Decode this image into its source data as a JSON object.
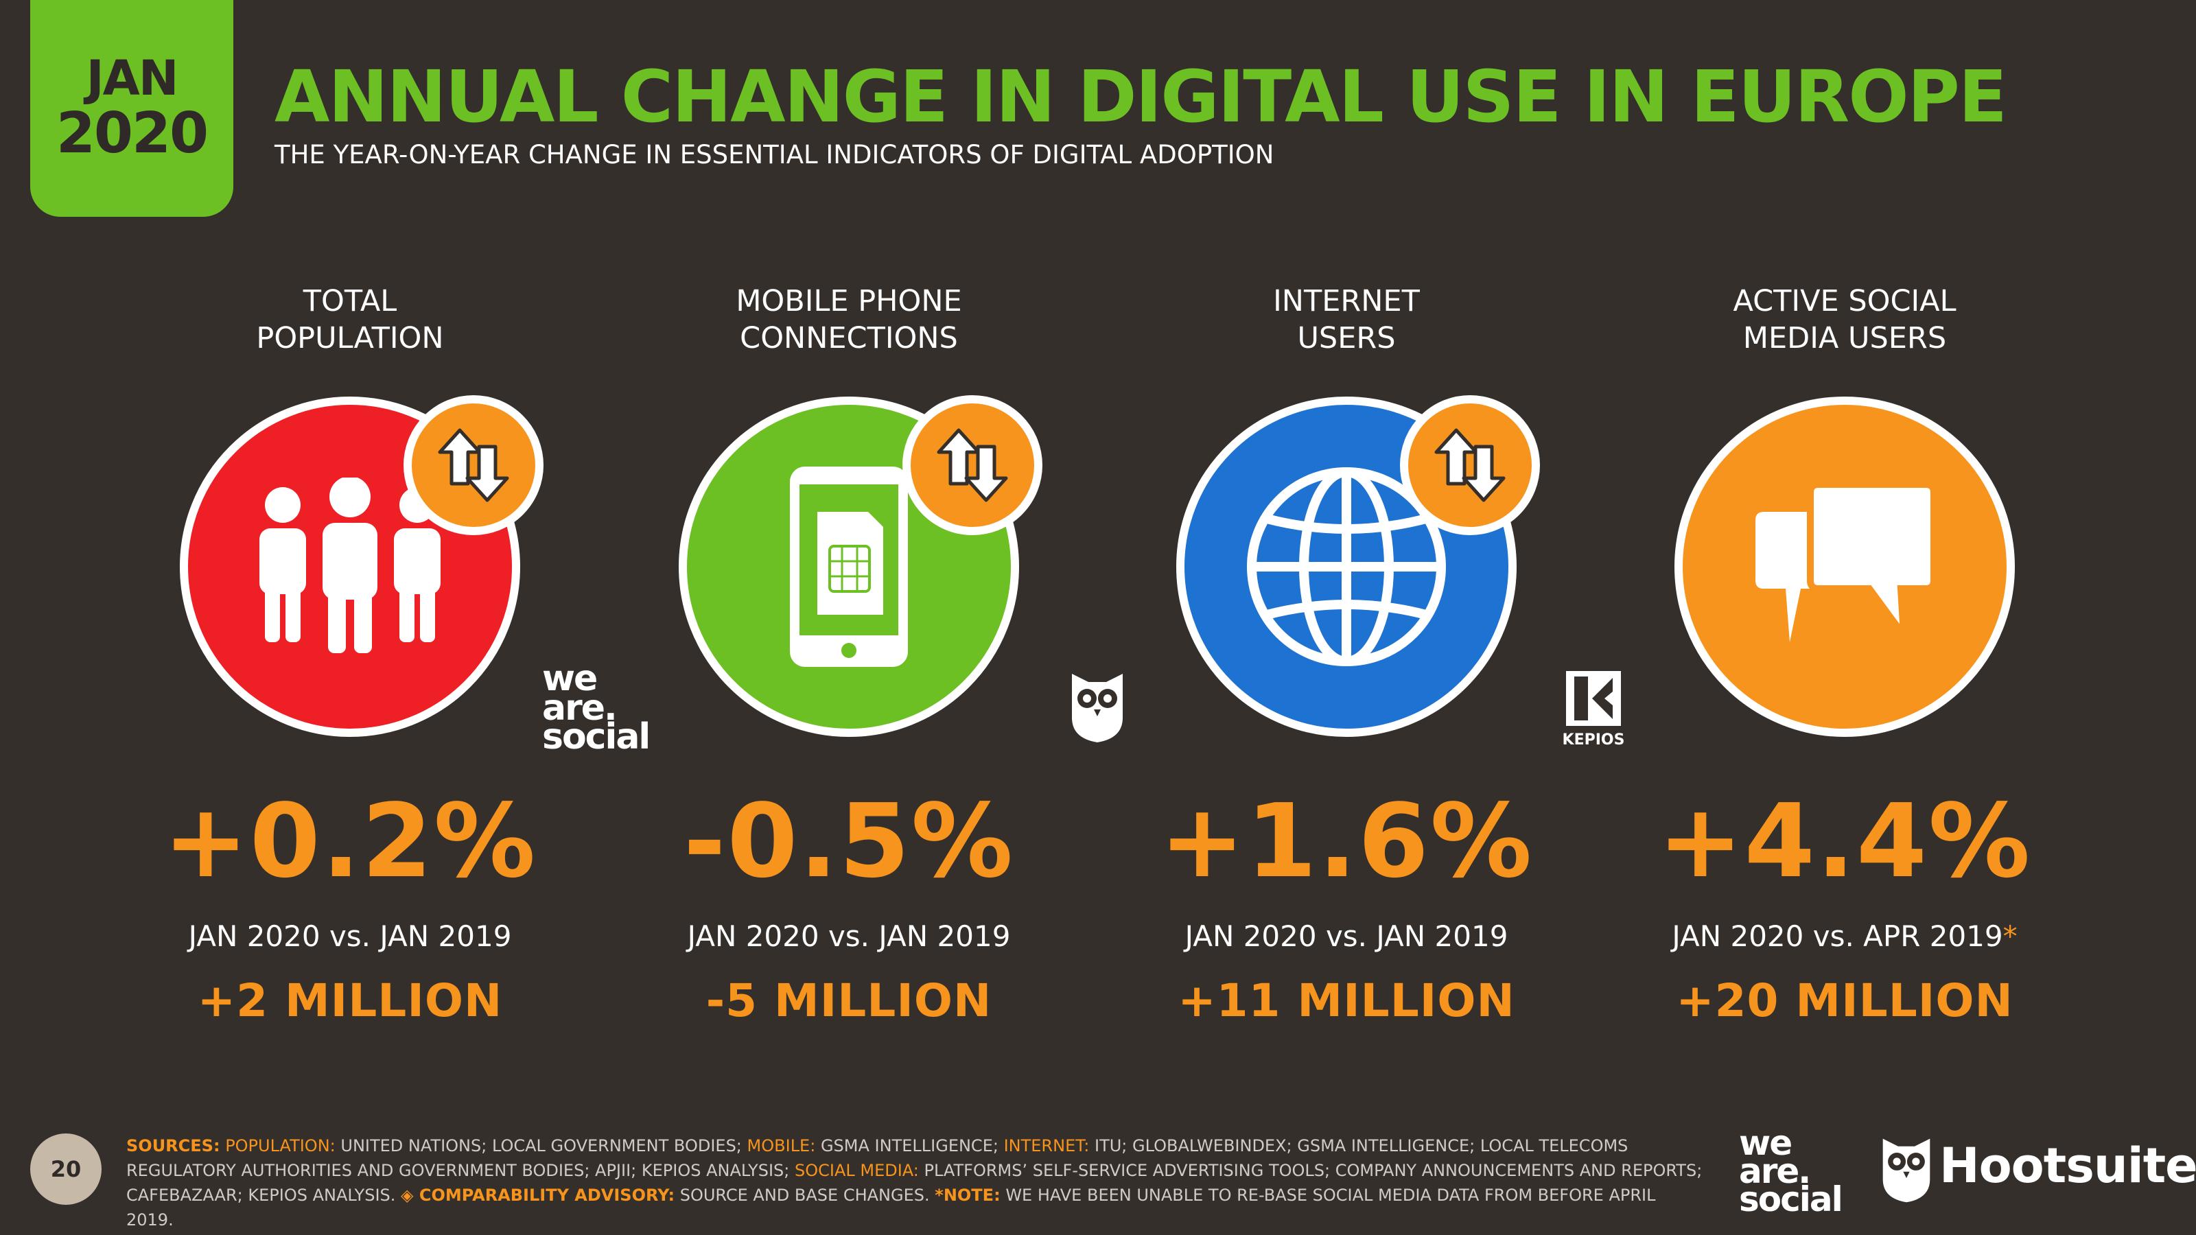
{
  "header": {
    "month": "JAN",
    "year": "2020",
    "title": "ANNUAL CHANGE IN DIGITAL USE IN EUROPE",
    "subtitle": "THE YEAR-ON-YEAR CHANGE IN ESSENTIAL INDICATORS OF DIGITAL ADOPTION"
  },
  "colors": {
    "background": "#352f2b",
    "accent_green": "#6cc024",
    "accent_orange": "#f7941d",
    "red": "#ee1f25",
    "green": "#6cc024",
    "blue": "#1e73d2",
    "orange": "#f7941d"
  },
  "indicators": [
    {
      "label_line1": "TOTAL",
      "label_line2": "POPULATION",
      "icon": "people-icon",
      "value": "+0.2%",
      "period": "JAN 2020 vs. JAN 2019",
      "absolute": "+2 MILLION"
    },
    {
      "label_line1": "MOBILE PHONE",
      "label_line2": "CONNECTIONS",
      "icon": "mobile-phone-icon",
      "value": "-0.5%",
      "period": "JAN 2020 vs. JAN 2019",
      "absolute": "-5 MILLION"
    },
    {
      "label_line1": "INTERNET",
      "label_line2": "USERS",
      "icon": "globe-icon",
      "value": "+1.6%",
      "period": "JAN 2020 vs. JAN 2019",
      "absolute": "+11 MILLION"
    },
    {
      "label_line1": "ACTIVE SOCIAL",
      "label_line2": "MEDIA USERS",
      "icon": "chat-bubbles-icon",
      "value": "+4.4%",
      "period": "JAN 2020 vs. APR 2019",
      "period_marker": "*",
      "absolute": "+20 MILLION"
    }
  ],
  "logos": {
    "we_are_social": [
      "we",
      "are.",
      "social"
    ],
    "kepios": "KEPIOS",
    "hootsuite": "Hootsuite"
  },
  "footer": {
    "page_number": "20",
    "sources_label": "SOURCES:",
    "population_label": "POPULATION:",
    "population_text": "UNITED NATIONS; LOCAL GOVERNMENT BODIES;",
    "mobile_label": "MOBILE:",
    "mobile_text": "GSMA INTELLIGENCE;",
    "internet_label": "INTERNET:",
    "internet_text": "ITU; GLOBALWEBINDEX; GSMA INTELLIGENCE; LOCAL TELECOMS REGULATORY AUTHORITIES AND GOVERNMENT BODIES; APJII; KEPIOS ANALYSIS;",
    "social_label": "SOCIAL MEDIA:",
    "social_text": "PLATFORMS’ SELF-SERVICE ADVERTISING TOOLS; COMPANY ANNOUNCEMENTS AND REPORTS; CAFEBAZAAR; KEPIOS ANALYSIS.",
    "advisory_label": "◈ COMPARABILITY ADVISORY:",
    "advisory_text": "SOURCE AND BASE CHANGES.",
    "note_label": "*NOTE:",
    "note_text": "WE HAVE BEEN UNABLE TO RE-BASE SOCIAL MEDIA DATA FROM BEFORE APRIL 2019."
  }
}
